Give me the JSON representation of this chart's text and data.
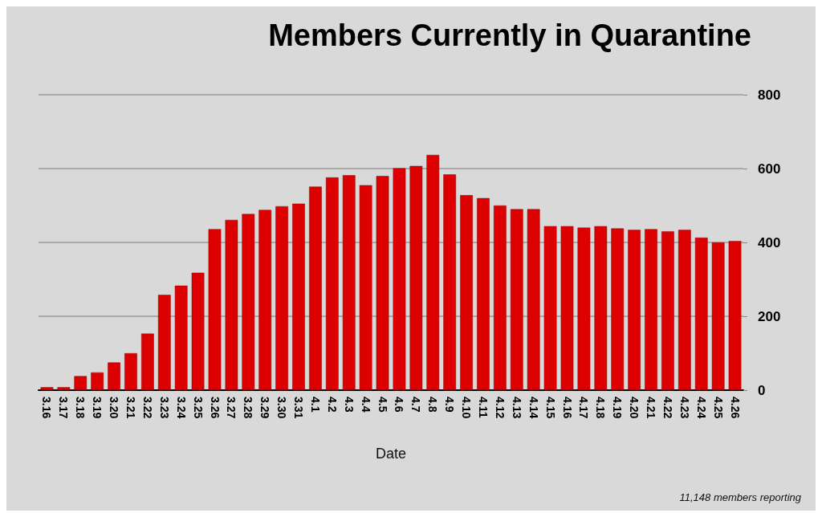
{
  "chart_data": {
    "type": "bar",
    "title": "Members Currently in Quarantine",
    "xlabel": "Date",
    "categories": [
      "3.16",
      "3.17",
      "3.18",
      "3.19",
      "3.20",
      "3.21",
      "3.22",
      "3.23",
      "3.24",
      "3.25",
      "3.26",
      "3.27",
      "3.28",
      "3.29",
      "3.30",
      "3.31",
      "4.1",
      "4.2",
      "4.3",
      "4.4",
      "4.5",
      "4.6",
      "4.7",
      "4.8",
      "4.9",
      "4.10",
      "4.11",
      "4.12",
      "4.13",
      "4.14",
      "4.15",
      "4.16",
      "4.17",
      "4.18",
      "4.19",
      "4.20",
      "4.21",
      "4.22",
      "4.23",
      "4.24",
      "4.25",
      "4.26"
    ],
    "values": [
      8,
      8,
      38,
      48,
      75,
      100,
      153,
      258,
      283,
      318,
      436,
      461,
      477,
      488,
      498,
      505,
      551,
      576,
      582,
      555,
      580,
      601,
      607,
      637,
      584,
      528,
      520,
      500,
      490,
      490,
      444,
      444,
      440,
      444,
      438,
      434,
      436,
      430,
      434,
      413,
      400,
      404
    ],
    "color": "#dd0000",
    "ylim": [
      0,
      800
    ],
    "yticks": [
      0,
      200,
      400,
      600,
      800
    ],
    "grid": "y",
    "annotations": [
      "11,148 members reporting"
    ]
  }
}
